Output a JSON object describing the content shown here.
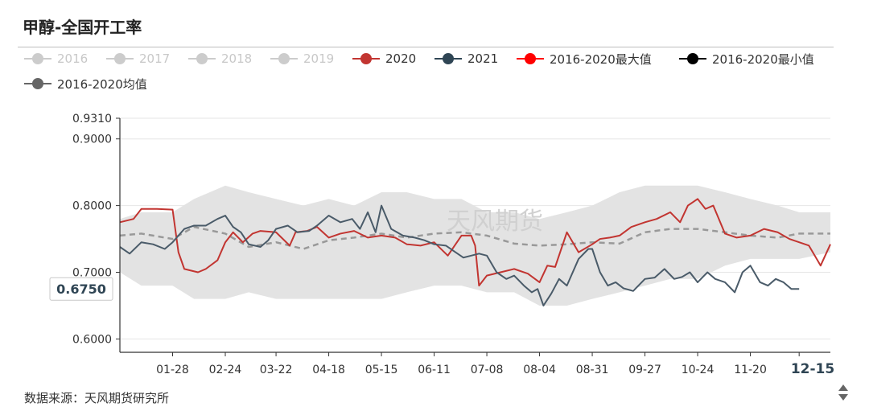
{
  "title": "甲醇-全国开工率",
  "footer": "数据来源：天风期货研究所",
  "watermark": "天风期货",
  "chart_data": {
    "type": "line",
    "xlabel": "",
    "ylabel": "",
    "x_range": [
      "01-01",
      "12-31"
    ],
    "ylim": [
      0.58,
      0.931
    ],
    "y_top_label": "0.9310",
    "y_ticks": [
      0.6,
      0.7,
      0.8,
      0.9
    ],
    "y_tick_labels": [
      "0.6000",
      "0.7000",
      "0.8000",
      "0.9000"
    ],
    "x_tick_labels": [
      "01-28",
      "02-24",
      "03-22",
      "04-18",
      "05-15",
      "06-11",
      "07-08",
      "08-04",
      "08-31",
      "09-27",
      "10-24",
      "11-20"
    ],
    "x_end_label": "12-15",
    "crosshair_value_label": "0.6750",
    "crosshair_value": 0.675,
    "grid": "horizontal",
    "legend_position": "top",
    "legend": [
      {
        "name": "2016",
        "color": "#cccccc",
        "line": "#cccccc",
        "dim": true
      },
      {
        "name": "2017",
        "color": "#cccccc",
        "line": "#cccccc",
        "dim": true
      },
      {
        "name": "2018",
        "color": "#cccccc",
        "line": "#cccccc",
        "dim": true
      },
      {
        "name": "2019",
        "color": "#cccccc",
        "line": "#cccccc",
        "dim": true
      },
      {
        "name": "2020",
        "color": "#c23531",
        "line": "#c23531",
        "dim": false
      },
      {
        "name": "2021",
        "color": "#2f4554",
        "line": "#2f4554",
        "dim": false
      },
      {
        "name": "2016-2020最大值",
        "color": "#ff0000",
        "line": "#ff0000",
        "dim": false
      },
      {
        "name": "2016-2020最小值",
        "color": "#000000",
        "line": "#000000",
        "dim": false
      },
      {
        "name": "2016-2020均值",
        "color": "#666666",
        "line": "#666666",
        "dim": false
      }
    ],
    "band": {
      "x": [
        "01-01",
        "01-12",
        "01-28",
        "02-08",
        "02-24",
        "03-08",
        "03-22",
        "04-05",
        "04-18",
        "05-01",
        "05-15",
        "05-28",
        "06-11",
        "06-25",
        "07-08",
        "07-22",
        "08-04",
        "08-18",
        "08-31",
        "09-14",
        "09-27",
        "10-10",
        "10-24",
        "11-07",
        "11-20",
        "12-04",
        "12-15",
        "12-31"
      ],
      "max": [
        0.78,
        0.79,
        0.79,
        0.81,
        0.83,
        0.82,
        0.81,
        0.8,
        0.81,
        0.8,
        0.82,
        0.82,
        0.81,
        0.81,
        0.79,
        0.79,
        0.78,
        0.79,
        0.8,
        0.82,
        0.83,
        0.83,
        0.83,
        0.82,
        0.81,
        0.8,
        0.79,
        0.79
      ],
      "min": [
        0.7,
        0.68,
        0.68,
        0.66,
        0.66,
        0.67,
        0.66,
        0.66,
        0.66,
        0.66,
        0.66,
        0.67,
        0.68,
        0.68,
        0.67,
        0.67,
        0.65,
        0.65,
        0.66,
        0.67,
        0.68,
        0.69,
        0.69,
        0.71,
        0.72,
        0.72,
        0.72,
        0.73
      ]
    },
    "series": [
      {
        "name": "2016-2020均值",
        "color": "#999999",
        "dash": true,
        "x": [
          "01-01",
          "01-12",
          "01-28",
          "02-08",
          "02-24",
          "03-08",
          "03-22",
          "04-05",
          "04-18",
          "05-01",
          "05-15",
          "05-28",
          "06-11",
          "06-25",
          "07-08",
          "07-22",
          "08-04",
          "08-18",
          "08-31",
          "09-14",
          "09-27",
          "10-10",
          "10-24",
          "11-07",
          "11-20",
          "12-04",
          "12-15",
          "12-31"
        ],
        "y": [
          0.755,
          0.758,
          0.75,
          0.768,
          0.758,
          0.738,
          0.745,
          0.735,
          0.748,
          0.752,
          0.758,
          0.752,
          0.758,
          0.76,
          0.755,
          0.743,
          0.74,
          0.742,
          0.745,
          0.743,
          0.76,
          0.765,
          0.765,
          0.76,
          0.755,
          0.752,
          0.758,
          0.758
        ]
      },
      {
        "name": "2020",
        "color": "#c23531",
        "dash": false,
        "x": [
          "01-01",
          "01-08",
          "01-12",
          "01-20",
          "01-28",
          "01-31",
          "02-03",
          "02-10",
          "02-14",
          "02-20",
          "02-24",
          "02-28",
          "03-05",
          "03-10",
          "03-14",
          "03-22",
          "03-29",
          "04-01",
          "04-07",
          "04-12",
          "04-18",
          "04-24",
          "05-01",
          "05-08",
          "05-15",
          "05-22",
          "05-28",
          "06-04",
          "06-11",
          "06-18",
          "06-25",
          "06-30",
          "07-02",
          "07-04",
          "07-08",
          "07-15",
          "07-22",
          "07-29",
          "08-04",
          "08-08",
          "08-12",
          "08-18",
          "08-24",
          "08-31",
          "09-04",
          "09-09",
          "09-14",
          "09-20",
          "09-27",
          "10-03",
          "10-10",
          "10-15",
          "10-19",
          "10-24",
          "10-28",
          "11-01",
          "11-07",
          "11-13",
          "11-20",
          "11-27",
          "12-04",
          "12-10",
          "12-15",
          "12-20",
          "12-26",
          "12-31"
        ],
        "y": [
          0.775,
          0.78,
          0.795,
          0.795,
          0.794,
          0.73,
          0.705,
          0.7,
          0.705,
          0.718,
          0.745,
          0.76,
          0.745,
          0.758,
          0.762,
          0.76,
          0.74,
          0.76,
          0.762,
          0.768,
          0.752,
          0.758,
          0.762,
          0.752,
          0.755,
          0.752,
          0.742,
          0.74,
          0.745,
          0.725,
          0.755,
          0.755,
          0.74,
          0.68,
          0.695,
          0.7,
          0.705,
          0.698,
          0.685,
          0.71,
          0.708,
          0.76,
          0.73,
          0.742,
          0.75,
          0.752,
          0.755,
          0.768,
          0.775,
          0.78,
          0.79,
          0.775,
          0.8,
          0.81,
          0.795,
          0.8,
          0.758,
          0.752,
          0.755,
          0.765,
          0.76,
          0.75,
          0.745,
          0.74,
          0.71,
          0.742
        ]
      },
      {
        "name": "2021",
        "color": "#4a5b69",
        "dash": false,
        "x": [
          "01-01",
          "01-06",
          "01-12",
          "01-18",
          "01-24",
          "01-28",
          "02-03",
          "02-08",
          "02-14",
          "02-20",
          "02-24",
          "02-28",
          "03-04",
          "03-08",
          "03-14",
          "03-18",
          "03-22",
          "03-28",
          "04-02",
          "04-08",
          "04-12",
          "04-18",
          "04-24",
          "04-30",
          "05-04",
          "05-08",
          "05-12",
          "05-15",
          "05-20",
          "05-26",
          "06-01",
          "06-06",
          "06-11",
          "06-17",
          "06-22",
          "06-26",
          "06-30",
          "07-04",
          "07-08",
          "07-13",
          "07-18",
          "07-22",
          "07-27",
          "07-31",
          "08-03",
          "08-06",
          "08-10",
          "08-14",
          "08-18",
          "08-24",
          "08-29",
          "08-31",
          "09-04",
          "09-08",
          "09-12",
          "09-16",
          "09-21",
          "09-27",
          "10-02",
          "10-07",
          "10-12",
          "10-16",
          "10-20",
          "10-24",
          "10-29",
          "11-02",
          "11-07",
          "11-12",
          "11-16",
          "11-20",
          "11-25",
          "11-29",
          "12-03",
          "12-07",
          "12-11",
          "12-15"
        ],
        "y": [
          0.738,
          0.728,
          0.745,
          0.742,
          0.735,
          0.745,
          0.765,
          0.77,
          0.77,
          0.78,
          0.785,
          0.768,
          0.76,
          0.742,
          0.738,
          0.748,
          0.765,
          0.77,
          0.76,
          0.762,
          0.77,
          0.785,
          0.775,
          0.78,
          0.765,
          0.79,
          0.76,
          0.8,
          0.765,
          0.755,
          0.752,
          0.748,
          0.742,
          0.74,
          0.73,
          0.722,
          0.725,
          0.728,
          0.725,
          0.7,
          0.69,
          0.695,
          0.68,
          0.67,
          0.675,
          0.65,
          0.668,
          0.69,
          0.68,
          0.72,
          0.735,
          0.735,
          0.7,
          0.68,
          0.685,
          0.676,
          0.672,
          0.69,
          0.692,
          0.705,
          0.69,
          0.693,
          0.7,
          0.685,
          0.7,
          0.69,
          0.685,
          0.67,
          0.7,
          0.71,
          0.685,
          0.68,
          0.69,
          0.685,
          0.675,
          0.675
        ]
      }
    ]
  }
}
